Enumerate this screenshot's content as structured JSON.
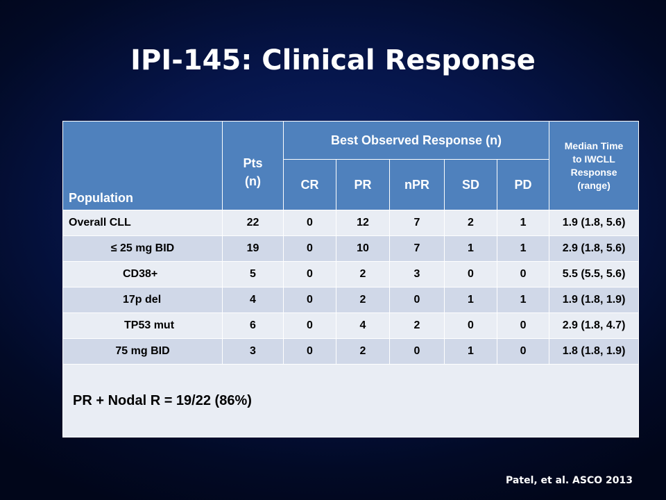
{
  "title": "IPI-145: Clinical Response",
  "citation": "Patel, et al. ASCO 2013",
  "table": {
    "headers": {
      "population": "Population",
      "pts": "Pts\n(n)",
      "best_response": "Best Observed Response (n)",
      "median": "Median Time\nto IWCLL\nResponse\n(range)",
      "cr": "CR",
      "pr": "PR",
      "npr": "nPR",
      "sd": "SD",
      "pd": "PD"
    },
    "rows": [
      {
        "population": "Overall CLL",
        "pts": "22",
        "cr": "0",
        "pr": "12",
        "npr": "7",
        "sd": "2",
        "pd": "1",
        "median": "1.9 (1.8, 5.6)"
      },
      {
        "population": "≤ 25 mg BID",
        "pts": "19",
        "cr": "0",
        "pr": "10",
        "npr": "7",
        "sd": "1",
        "pd": "1",
        "median": "2.9 (1.8, 5.6)"
      },
      {
        "population": "CD38+",
        "pts": "5",
        "cr": "0",
        "pr": "2",
        "npr": "3",
        "sd": "0",
        "pd": "0",
        "median": "5.5 (5.5, 5.6)"
      },
      {
        "population": "17p del",
        "pts": "4",
        "cr": "0",
        "pr": "2",
        "npr": "0",
        "sd": "1",
        "pd": "1",
        "median": "1.9 (1.8, 1.9)"
      },
      {
        "population": "TP53 mut",
        "pts": "6",
        "cr": "0",
        "pr": "4",
        "npr": "2",
        "sd": "0",
        "pd": "0",
        "median": "2.9 (1.8, 4.7)"
      },
      {
        "population": "75 mg BID",
        "pts": "3",
        "cr": "0",
        "pr": "2",
        "npr": "0",
        "sd": "1",
        "pd": "0",
        "median": "1.8 (1.8, 1.9)"
      }
    ],
    "summary": "PR + Nodal R = 19/22 (86%)"
  }
}
